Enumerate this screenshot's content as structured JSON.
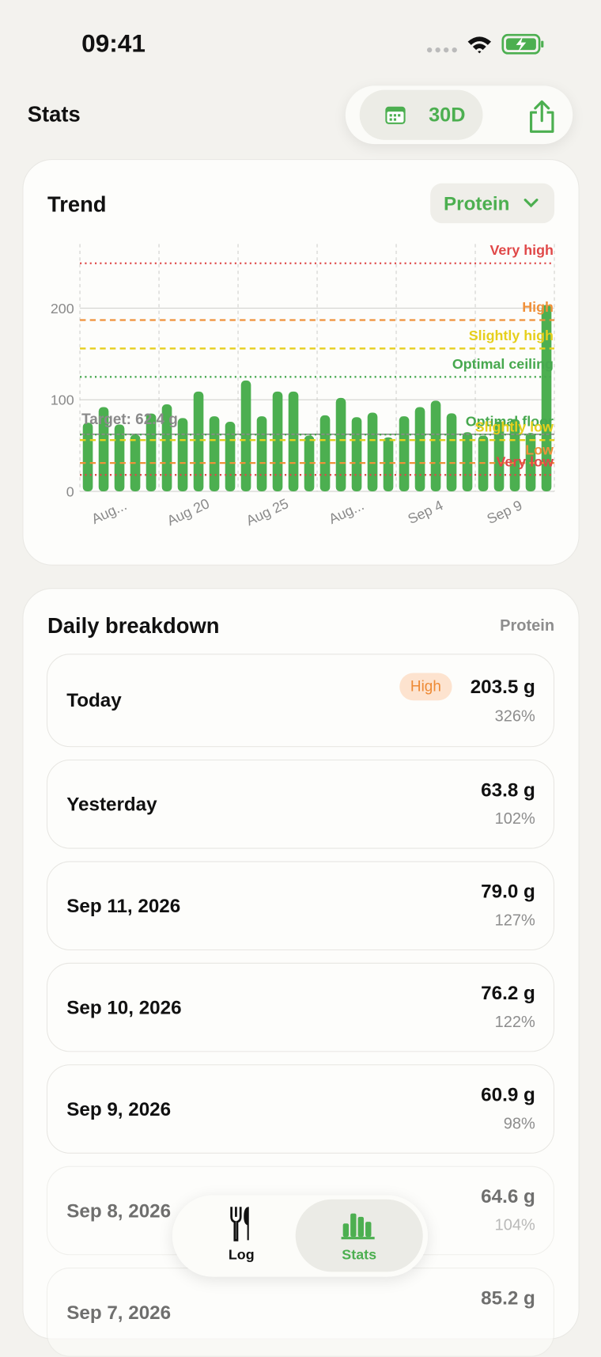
{
  "status_bar": {
    "time": "09:41"
  },
  "header": {
    "title": "Stats",
    "range": "30D"
  },
  "trend": {
    "title": "Trend",
    "nutrient": "Protein"
  },
  "chart_data": {
    "type": "bar",
    "categories": [
      "Aug...",
      null,
      null,
      null,
      null,
      "Aug 20",
      null,
      null,
      null,
      null,
      "Aug 25",
      null,
      null,
      null,
      null,
      "Aug...",
      null,
      null,
      null,
      null,
      "Sep 4",
      null,
      null,
      null,
      null,
      "Sep 9",
      null,
      null,
      null,
      null
    ],
    "values": [
      75,
      92,
      73,
      62,
      85,
      95,
      80,
      109,
      82,
      76,
      121,
      82,
      109,
      109,
      61,
      83,
      102,
      81,
      86,
      59,
      82,
      92,
      99,
      85.2,
      64.6,
      60.9,
      76.2,
      79.0,
      63.8,
      203.5
    ],
    "color": "#4caf50",
    "ylim": [
      0,
      270
    ],
    "yticks": [
      0,
      100,
      200
    ],
    "grid": true,
    "target": {
      "label": "Target: 62.4 g",
      "value": 62.4,
      "color": "#8a8a8a"
    },
    "thresholds": [
      {
        "name": "Very high",
        "value": 249,
        "color": "#e04848",
        "style": "dotted"
      },
      {
        "name": "High",
        "value": 187,
        "color": "#f0913a",
        "style": "dashed"
      },
      {
        "name": "Slightly high",
        "value": 156,
        "color": "#e6cf1c",
        "style": "dashed"
      },
      {
        "name": "Optimal ceiling",
        "value": 125,
        "color": "#46a84e",
        "style": "dotted"
      },
      {
        "name": "Optimal floor",
        "value": 62,
        "color": "#46a84e",
        "style": "dotted"
      },
      {
        "name": "Slightly low",
        "value": 56,
        "color": "#e6cf1c",
        "style": "dashed"
      },
      {
        "name": "Low",
        "value": 31,
        "color": "#f0913a",
        "style": "dashed"
      },
      {
        "name": "Very low",
        "value": 18,
        "color": "#e04848",
        "style": "dotted"
      }
    ]
  },
  "breakdown": {
    "title": "Daily breakdown",
    "nutrient": "Protein",
    "rows": [
      {
        "date": "Today",
        "badge": "High",
        "amount": "203.5 g",
        "percent": "326%"
      },
      {
        "date": "Yesterday",
        "amount": "63.8 g",
        "percent": "102%"
      },
      {
        "date": "Sep 11, 2026",
        "amount": "79.0 g",
        "percent": "127%"
      },
      {
        "date": "Sep 10, 2026",
        "amount": "76.2 g",
        "percent": "122%"
      },
      {
        "date": "Sep 9, 2026",
        "amount": "60.9 g",
        "percent": "98%"
      },
      {
        "date": "Sep 8, 2026",
        "amount": "64.6 g",
        "percent": "104%"
      },
      {
        "date": "Sep 7, 2026",
        "amount": "85.2 g"
      }
    ]
  },
  "tab_bar": {
    "tabs": [
      "Log",
      "Stats"
    ]
  }
}
